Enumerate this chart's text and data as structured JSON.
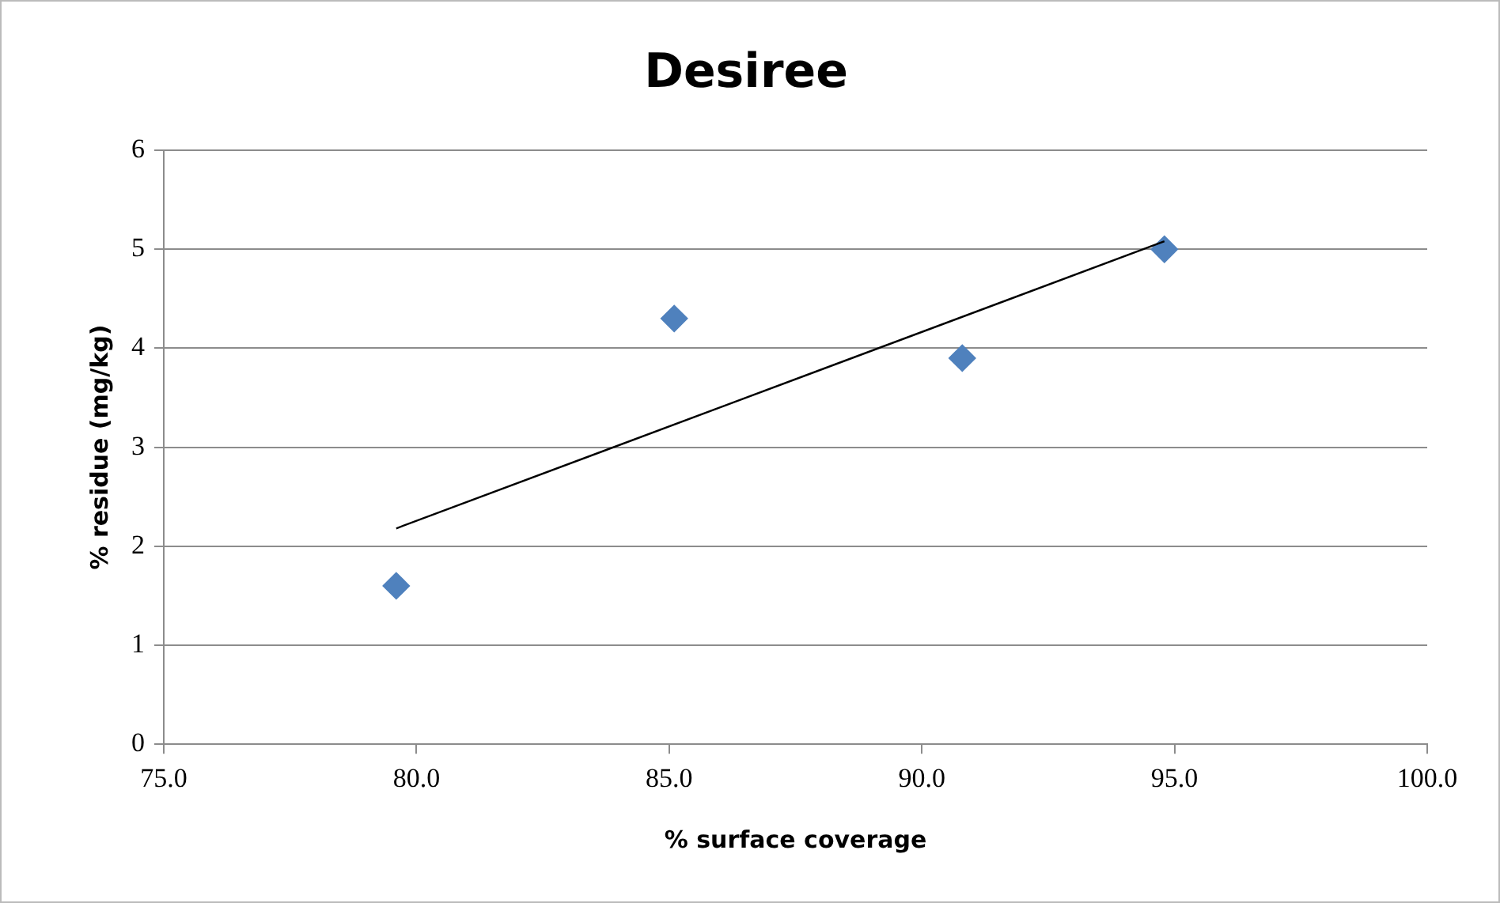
{
  "chart_data": {
    "type": "scatter",
    "title": "Desiree",
    "xlabel": "% surface coverage",
    "ylabel": "% residue (mg/kg)",
    "xlim": [
      75,
      100
    ],
    "xticks": [
      {
        "value": 75,
        "label": "75.0"
      },
      {
        "value": 80,
        "label": "80.0"
      },
      {
        "value": 85,
        "label": "85.0"
      },
      {
        "value": 90,
        "label": "90.0"
      },
      {
        "value": 95,
        "label": "95.0"
      },
      {
        "value": 100,
        "label": "100.0"
      }
    ],
    "ylim": [
      0,
      6
    ],
    "yticks": [
      0,
      1,
      2,
      3,
      4,
      5,
      6
    ],
    "grid": "y",
    "legend": false,
    "marker": "diamond",
    "series": [
      {
        "type": "scatter",
        "color": "#4f81bd",
        "x": [
          79.6,
          85.1,
          90.8,
          94.8
        ],
        "values": [
          1.6,
          4.3,
          3.9,
          5.0
        ]
      },
      {
        "type": "line",
        "color": "#000000",
        "x": [
          79.6,
          94.8
        ],
        "values": [
          2.18,
          5.08
        ],
        "marker": "none",
        "line_style": "solid"
      }
    ]
  }
}
